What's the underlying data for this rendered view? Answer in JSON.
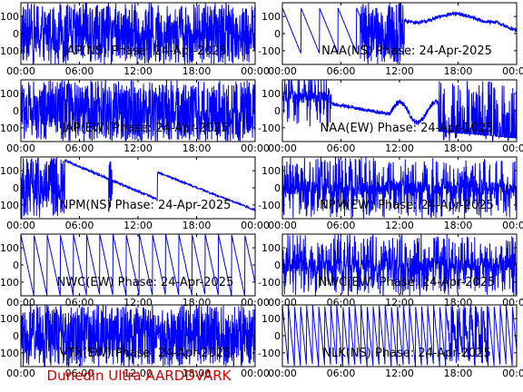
{
  "footer": "Dunedin Ultra AARDDVARK",
  "colors": {
    "trace": "#0000ff",
    "axes": "#000000",
    "footer": "#d40000",
    "background": "#ffffff"
  },
  "chart_data": [
    {
      "type": "line",
      "title": "JAP(NS) Phase: 24-Apr-2025",
      "pattern": "dense",
      "density": 0.93,
      "series": [
        {
          "color": "#0000ff"
        }
      ],
      "x_ticks": [
        "00:00",
        "06:00",
        "12:00",
        "18:00",
        "00:00"
      ],
      "y_ticks": [
        100,
        0,
        -100
      ],
      "ylim": [
        -180,
        180
      ],
      "xlim": [
        0,
        24
      ]
    },
    {
      "type": "line",
      "title": "NAA(NS) Phase: 24-Apr-2025",
      "pattern": "naa_ns",
      "series": [
        {
          "color": "#0000ff"
        }
      ],
      "x_ticks": [
        "00:00",
        "06:00",
        "12:00",
        "18:00",
        "00:00"
      ],
      "y_ticks": [
        100,
        0,
        -100
      ],
      "ylim": [
        -180,
        180
      ],
      "xlim": [
        0,
        24
      ]
    },
    {
      "type": "line",
      "title": "JAP(EW) Phase: 24-Apr-2025",
      "pattern": "dense",
      "density": 0.99,
      "series": [
        {
          "color": "#0000ff"
        }
      ],
      "x_ticks": [
        "00:00",
        "06:00",
        "12:00",
        "18:00",
        "00:00"
      ],
      "y_ticks": [
        100,
        0,
        -100
      ],
      "ylim": [
        -180,
        180
      ],
      "xlim": [
        0,
        24
      ]
    },
    {
      "type": "line",
      "title": "NAA(EW) Phase: 24-Apr-2025",
      "pattern": "naa_ew",
      "series": [
        {
          "color": "#0000ff"
        }
      ],
      "x_ticks": [
        "00:00",
        "06:00",
        "12:00",
        "18:00",
        "00:00"
      ],
      "y_ticks": [
        100,
        0,
        -100
      ],
      "ylim": [
        -180,
        180
      ],
      "xlim": [
        0,
        24
      ]
    },
    {
      "type": "line",
      "title": "NPM(NS) Phase: 24-Apr-2025",
      "pattern": "npm_ns",
      "series": [
        {
          "color": "#0000ff"
        }
      ],
      "x_ticks": [
        "00:00",
        "06:00",
        "12:00",
        "18:00",
        "00:00"
      ],
      "y_ticks": [
        100,
        0,
        -100
      ],
      "ylim": [
        -180,
        180
      ],
      "xlim": [
        0,
        24
      ]
    },
    {
      "type": "line",
      "title": "NPM(EW) Phase: 24-Apr-2025",
      "pattern": "dense",
      "density": 0.55,
      "series": [
        {
          "color": "#0000ff"
        }
      ],
      "x_ticks": [
        "00:00",
        "06:00",
        "12:00",
        "18:00",
        "00:00"
      ],
      "y_ticks": [
        100,
        0,
        -100
      ],
      "ylim": [
        -180,
        180
      ],
      "xlim": [
        0,
        24
      ]
    },
    {
      "type": "line",
      "title": "NWC(EW) Phase: 24-Apr-2025",
      "pattern": "sawtooth",
      "drift_hours": 1.35,
      "series": [
        {
          "color": "#0000ff"
        }
      ],
      "x_ticks": [
        "00:00",
        "06:00",
        "12:00",
        "18:00",
        "00:00"
      ],
      "y_ticks": [
        100,
        0,
        -100
      ],
      "ylim": [
        -180,
        180
      ],
      "xlim": [
        0,
        24
      ]
    },
    {
      "type": "line",
      "title": "NWC(EW) Phase: 24-Apr-2025",
      "pattern": "dense",
      "density": 0.6,
      "series": [
        {
          "color": "#0000ff"
        }
      ],
      "x_ticks": [
        "00:00",
        "06:00",
        "12:00",
        "18:00",
        "00:00"
      ],
      "y_ticks": [
        100,
        0,
        -100
      ],
      "ylim": [
        -180,
        180
      ],
      "xlim": [
        0,
        24
      ]
    },
    {
      "type": "line",
      "title": "VTX(EW) Phase: 24-Apr-2025",
      "pattern": "dense",
      "density": 0.97,
      "series": [
        {
          "color": "#0000ff"
        }
      ],
      "x_ticks": [
        "00:00",
        "06:00",
        "12:00",
        "18:00",
        "00:00"
      ],
      "y_ticks": [
        100,
        0,
        -100
      ],
      "ylim": [
        -180,
        180
      ],
      "xlim": [
        0,
        24
      ]
    },
    {
      "type": "line",
      "title": "NLK(NS) Phase: 24-Apr-2025",
      "pattern": "sawtooth_fast",
      "drift_hours": 0.62,
      "series": [
        {
          "color": "#0000ff"
        }
      ],
      "x_ticks": [
        "00:00",
        "06:00",
        "12:00",
        "18:00",
        "00:00"
      ],
      "y_ticks": [
        100,
        0,
        -100
      ],
      "ylim": [
        -180,
        180
      ],
      "xlim": [
        0,
        24
      ]
    }
  ]
}
